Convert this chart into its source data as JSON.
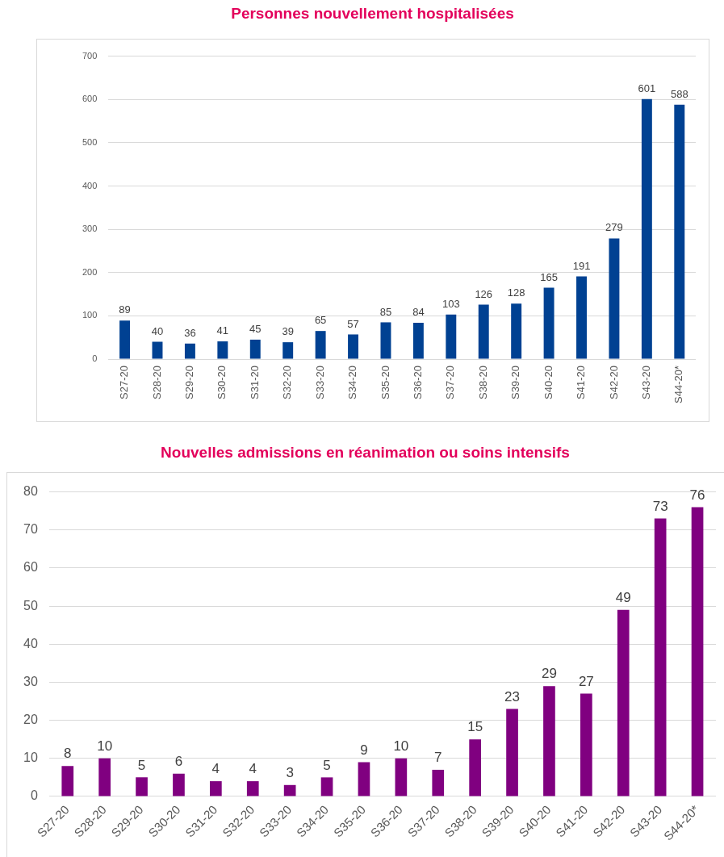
{
  "chart_data": [
    {
      "type": "bar",
      "title": "Personnes nouvellement hospitalisées",
      "categories": [
        "S27-20",
        "S28-20",
        "S29-20",
        "S30-20",
        "S31-20",
        "S32-20",
        "S33-20",
        "S34-20",
        "S35-20",
        "S36-20",
        "S37-20",
        "S38-20",
        "S39-20",
        "S40-20",
        "S41-20",
        "S42-20",
        "S43-20",
        "S44-20*"
      ],
      "values": [
        89,
        40,
        36,
        41,
        45,
        39,
        65,
        57,
        85,
        84,
        103,
        126,
        128,
        165,
        191,
        279,
        601,
        588
      ],
      "color": "#004192",
      "ylim": [
        0,
        700
      ],
      "yticks": [
        0,
        100,
        200,
        300,
        400,
        500,
        600,
        700
      ],
      "grid": "y",
      "data_labels": true
    },
    {
      "type": "bar",
      "title": "Nouvelles admissions en réanimation ou soins intensifs",
      "categories": [
        "S27-20",
        "S28-20",
        "S29-20",
        "S30-20",
        "S31-20",
        "S32-20",
        "S33-20",
        "S34-20",
        "S35-20",
        "S36-20",
        "S37-20",
        "S38-20",
        "S39-20",
        "S40-20",
        "S41-20",
        "S42-20",
        "S43-20",
        "S44-20*"
      ],
      "values": [
        8,
        10,
        5,
        6,
        4,
        4,
        3,
        5,
        9,
        10,
        7,
        15,
        23,
        29,
        27,
        49,
        73,
        76
      ],
      "color": "#800080",
      "ylim": [
        0,
        80
      ],
      "yticks": [
        0,
        10,
        20,
        30,
        40,
        50,
        60,
        70,
        80
      ],
      "grid": "y",
      "data_labels": true
    }
  ]
}
